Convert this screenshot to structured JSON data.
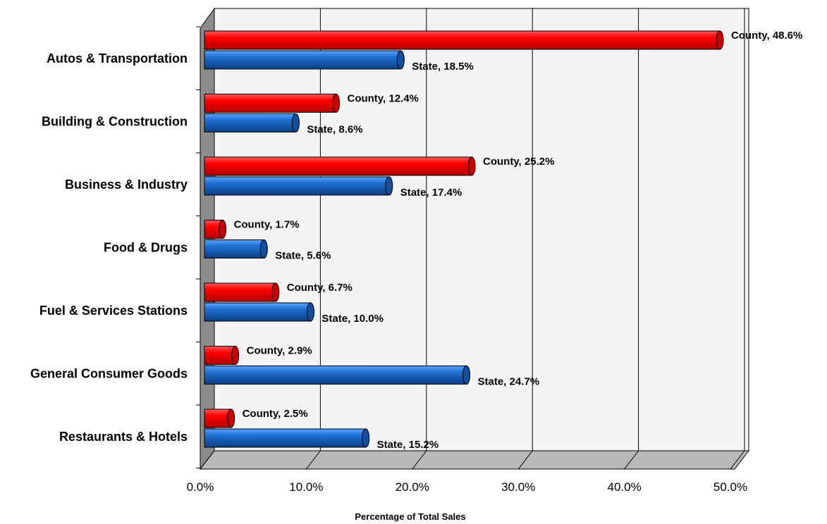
{
  "chart_data": {
    "type": "bar",
    "orientation": "horizontal",
    "style_3d": true,
    "categories": [
      "Autos & Transportation",
      "Building & Construction",
      "Business & Industry",
      "Food & Drugs",
      "Fuel & Services Stations",
      "General Consumer Goods",
      "Restaurants & Hotels"
    ],
    "series": [
      {
        "name": "County",
        "color": "#ff0000",
        "values": [
          48.6,
          12.4,
          25.2,
          1.7,
          6.7,
          2.9,
          2.5
        ],
        "labels": [
          "County, 48.6%",
          "County, 12.4%",
          "County, 25.2%",
          "County, 1.7%",
          "County, 6.7%",
          "County, 2.9%",
          "County, 2.5%"
        ]
      },
      {
        "name": "State",
        "color": "#1e6fd0",
        "values": [
          18.5,
          8.6,
          17.4,
          5.6,
          10.0,
          24.7,
          15.2
        ],
        "labels": [
          "State, 18.5%",
          "State, 8.6%",
          "State, 17.4%",
          "State, 5.6%",
          "State, 10.0%",
          "State, 24.7%",
          "State, 15.2%"
        ]
      }
    ],
    "xlim": [
      0,
      50
    ],
    "xticks": [
      "0.0%",
      "10.0%",
      "20.0%",
      "30.0%",
      "40.0%",
      "50.0%"
    ],
    "xlabel": "Percentage of Total Sales",
    "grid": true,
    "legend": "none"
  }
}
